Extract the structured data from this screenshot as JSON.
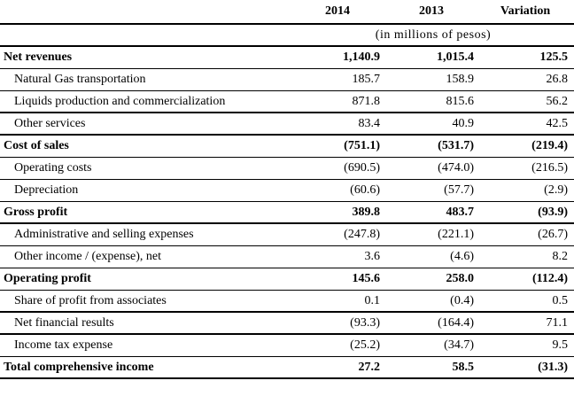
{
  "table": {
    "columns": [
      "",
      "2014",
      "2013",
      "Variation"
    ],
    "unit_note": "(in millions of pesos)",
    "rows": [
      {
        "label": "Net revenues",
        "y2014": "1,140.9",
        "y2013": "1,015.4",
        "variation": "125.5"
      },
      {
        "label": "Natural Gas transportation",
        "y2014": "185.7",
        "y2013": "158.9",
        "variation": "26.8"
      },
      {
        "label": "Liquids production and commercialization",
        "y2014": "871.8",
        "y2013": "815.6",
        "variation": "56.2"
      },
      {
        "label": "Other services",
        "y2014": "83.4",
        "y2013": "40.9",
        "variation": "42.5"
      },
      {
        "label": "Cost of sales",
        "y2014": "(751.1)",
        "y2013": "(531.7)",
        "variation": "(219.4)"
      },
      {
        "label": "Operating costs",
        "y2014": "(690.5)",
        "y2013": "(474.0)",
        "variation": "(216.5)"
      },
      {
        "label": "Depreciation",
        "y2014": "(60.6)",
        "y2013": "(57.7)",
        "variation": "(2.9)"
      },
      {
        "label": "Gross profit",
        "y2014": "389.8",
        "y2013": "483.7",
        "variation": "(93.9)"
      },
      {
        "label": "Administrative and selling expenses",
        "y2014": "(247.8)",
        "y2013": "(221.1)",
        "variation": "(26.7)"
      },
      {
        "label": "Other income / (expense), net",
        "y2014": "3.6",
        "y2013": "(4.6)",
        "variation": "8.2"
      },
      {
        "label": "Operating profit",
        "y2014": "145.6",
        "y2013": "258.0",
        "variation": "(112.4)"
      },
      {
        "label": "Share of profit from associates",
        "y2014": "0.1",
        "y2013": "(0.4)",
        "variation": "0.5"
      },
      {
        "label": "Net financial results",
        "y2014": "(93.3)",
        "y2013": "(164.4)",
        "variation": "71.1"
      },
      {
        "label": "Income tax expense",
        "y2014": "(25.2)",
        "y2013": "(34.7)",
        "variation": "9.5"
      },
      {
        "label": "Total comprehensive income",
        "y2014": "27.2",
        "y2013": "58.5",
        "variation": "(31.3)"
      }
    ]
  }
}
